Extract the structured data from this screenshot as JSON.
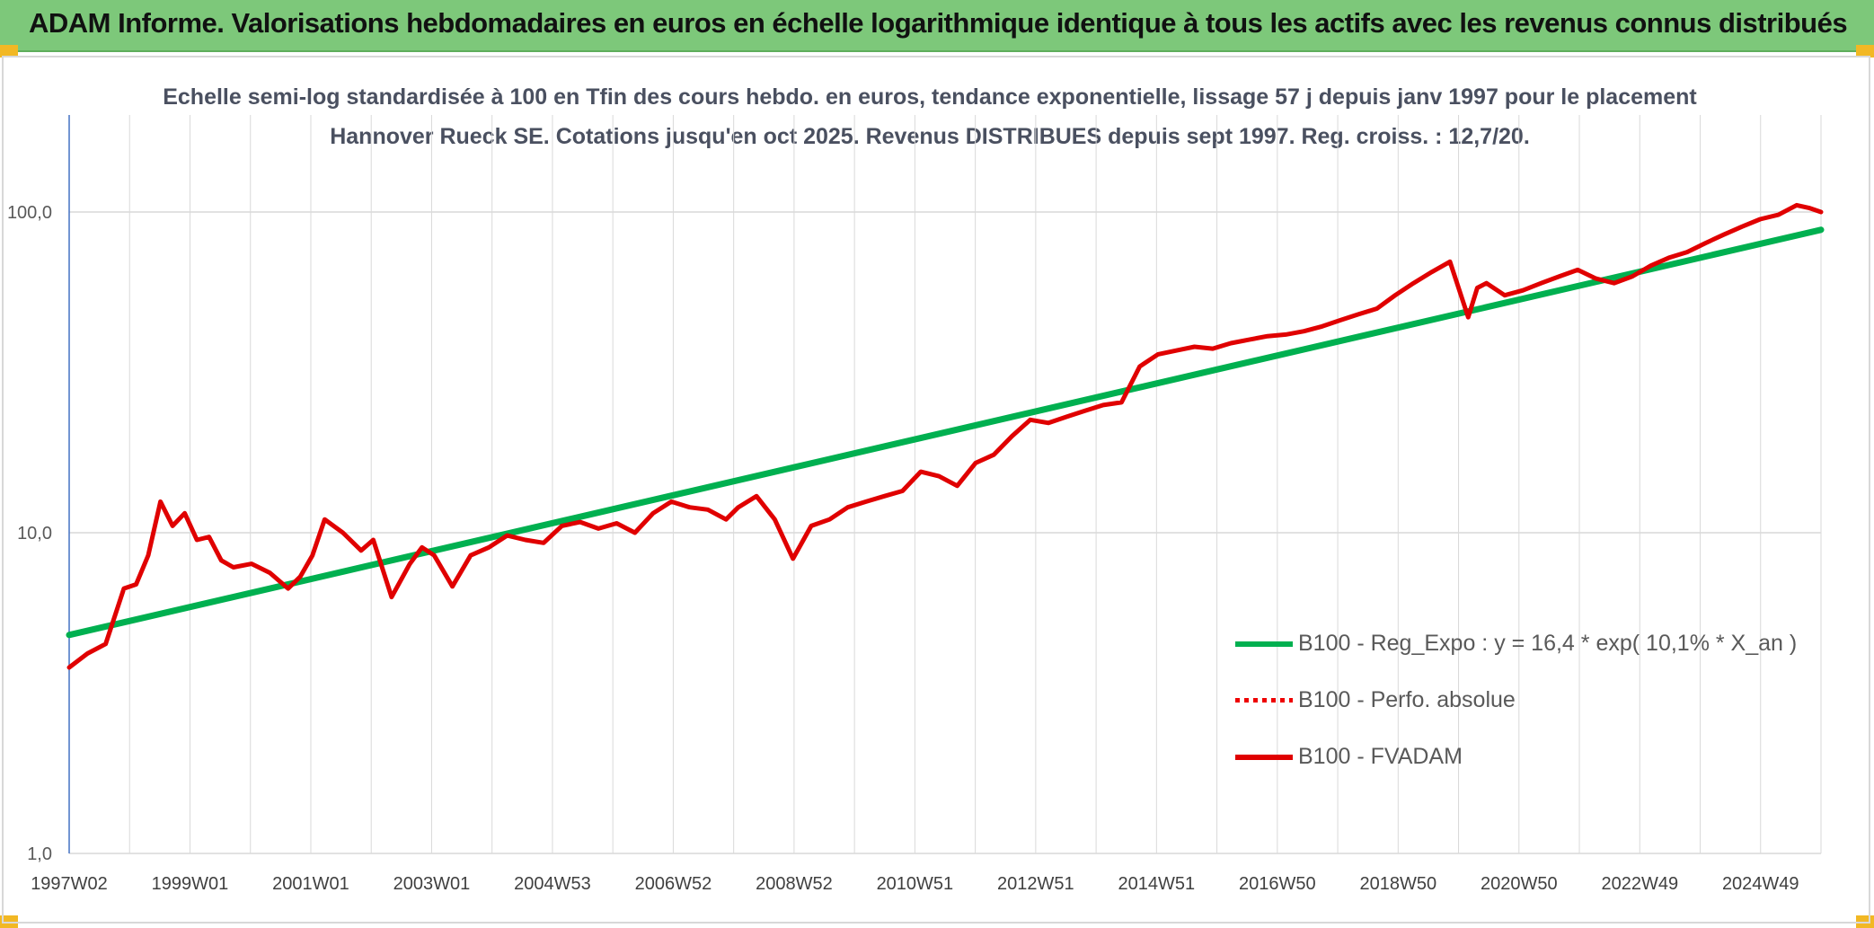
{
  "banner": {
    "title": "ADAM Informe. Valorisations hebdomadaires en euros en échelle logarithmique identique à tous les actifs avec les revenus connus distribués",
    "color": "#7dc87a"
  },
  "chart_data": {
    "type": "line",
    "title": "Echelle semi-log standardisée à 100 en Tfin des cours hebdo. en euros, tendance exponentielle, lissage 57 j depuis janv 1997 pour le placement Hannover Rueck SE. Cotations jusqu'en oct 2025. Revenus DISTRIBUES depuis sept 1997. Reg. croiss. : 12,7/20.",
    "xlabel": "",
    "ylabel": "",
    "y_scale": "log",
    "ylim": [
      1,
      100
    ],
    "y_tick_labels": [
      "1,0",
      "10,0",
      "100,0"
    ],
    "x_tick_labels": [
      "1997W02",
      "1999W01",
      "2001W01",
      "2003W01",
      "2004W53",
      "2006W52",
      "2008W52",
      "2010W51",
      "2012W51",
      "2014W51",
      "2016W50",
      "2018W50",
      "2020W50",
      "2022W49",
      "2024W49"
    ],
    "xlim": [
      1997.0,
      2025.8
    ],
    "grid": true,
    "legend_position": "lower-right",
    "legend": [
      {
        "label": "B100 - Reg_Expo : y = 16,4 * exp( 10,1% *  X_an )",
        "color": "#00b050",
        "style": "solid"
      },
      {
        "label": "B100 - Perfo. absolue",
        "color": "#e00000",
        "style": "dotted"
      },
      {
        "label": "B100 - FVADAM",
        "color": "#e00000",
        "style": "solid"
      }
    ],
    "series": [
      {
        "name": "B100 - Reg_Expo : y = 16,4 * exp( 10,1% *  X_an )",
        "color": "#00b050",
        "x": [
          1997.0,
          2025.8
        ],
        "y": [
          4.8,
          88
        ]
      },
      {
        "name": "B100 - FVADAM",
        "color": "#e00000",
        "x": [
          1997.0,
          1997.3,
          1997.6,
          1997.9,
          1998.1,
          1998.3,
          1998.5,
          1998.7,
          1998.9,
          1999.1,
          1999.3,
          1999.5,
          1999.7,
          2000.0,
          2000.3,
          2000.6,
          2000.8,
          2001.0,
          2001.2,
          2001.5,
          2001.8,
          2002.0,
          2002.3,
          2002.6,
          2002.8,
          2003.0,
          2003.3,
          2003.6,
          2003.9,
          2004.2,
          2004.5,
          2004.8,
          2005.1,
          2005.4,
          2005.7,
          2006.0,
          2006.3,
          2006.6,
          2006.9,
          2007.2,
          2007.5,
          2007.8,
          2008.0,
          2008.3,
          2008.6,
          2008.9,
          2009.2,
          2009.5,
          2009.8,
          2010.1,
          2010.4,
          2010.7,
          2011.0,
          2011.3,
          2011.6,
          2011.9,
          2012.2,
          2012.5,
          2012.8,
          2013.1,
          2013.4,
          2013.7,
          2014.0,
          2014.3,
          2014.6,
          2014.9,
          2015.2,
          2015.5,
          2015.8,
          2016.1,
          2016.4,
          2016.7,
          2017.0,
          2017.3,
          2017.6,
          2017.9,
          2018.2,
          2018.5,
          2018.8,
          2019.1,
          2019.4,
          2019.7,
          2020.0,
          2020.15,
          2020.3,
          2020.6,
          2020.9,
          2021.2,
          2021.5,
          2021.8,
          2022.1,
          2022.4,
          2022.7,
          2023.0,
          2023.3,
          2023.6,
          2023.9,
          2024.2,
          2024.5,
          2024.8,
          2025.1,
          2025.4,
          2025.6,
          2025.8
        ],
        "y": [
          3.8,
          4.2,
          4.5,
          6.7,
          6.9,
          8.5,
          12.5,
          10.5,
          11.5,
          9.5,
          9.7,
          8.2,
          7.8,
          8.0,
          7.5,
          6.7,
          7.3,
          8.5,
          11.0,
          10.0,
          8.8,
          9.5,
          6.3,
          8.0,
          9.0,
          8.5,
          6.8,
          8.5,
          9.0,
          9.8,
          9.5,
          9.3,
          10.5,
          10.8,
          10.3,
          10.7,
          10.0,
          11.5,
          12.5,
          12.0,
          11.8,
          11.0,
          12.0,
          13.0,
          11.0,
          8.3,
          10.5,
          11.0,
          12.0,
          12.5,
          13.0,
          13.5,
          15.5,
          15.0,
          14.0,
          16.5,
          17.5,
          20.0,
          22.5,
          22.0,
          23.0,
          24.0,
          25.0,
          25.5,
          33.0,
          36.0,
          37.0,
          38.0,
          37.5,
          39.0,
          40.0,
          41.0,
          41.5,
          42.5,
          44.0,
          46.0,
          48.0,
          50.0,
          55.0,
          60.0,
          65.0,
          70.0,
          47.0,
          58.0,
          60.0,
          55.0,
          57.0,
          60.0,
          63.0,
          66.0,
          62.0,
          60.0,
          63.0,
          68.0,
          72.0,
          75.0,
          80.0,
          85.0,
          90.0,
          95.0,
          98.0,
          105.0,
          103.0,
          100.0
        ]
      }
    ]
  }
}
